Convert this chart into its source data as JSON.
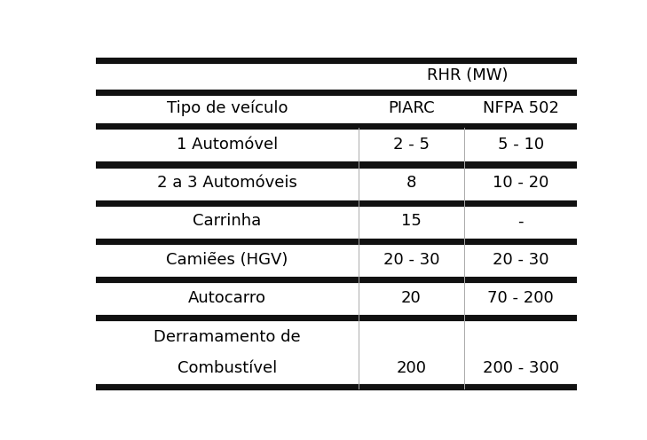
{
  "title_header": "RHR (MW)",
  "col_headers": [
    "Tipo de veículo",
    "PIARC",
    "NFPA 502"
  ],
  "rows": [
    [
      "1 Automóvel",
      "2 - 5",
      "5 - 10"
    ],
    [
      "2 a 3 Automóveis",
      "8",
      "10 - 20"
    ],
    [
      "Carrinha",
      "15",
      "-"
    ],
    [
      "Camiẽes (HGV)",
      "20 - 30",
      "20 - 30"
    ],
    [
      "Autocarro",
      "20",
      "70 - 200"
    ],
    [
      "Derramamento de\nCombustível",
      "200",
      "200 - 300"
    ]
  ],
  "bg_color": "#ffffff",
  "text_color": "#000000",
  "thick_line_color": "#111111",
  "thin_line_color": "#aaaaaa",
  "font_size": 13,
  "fig_width": 7.29,
  "fig_height": 4.96,
  "dpi": 100
}
